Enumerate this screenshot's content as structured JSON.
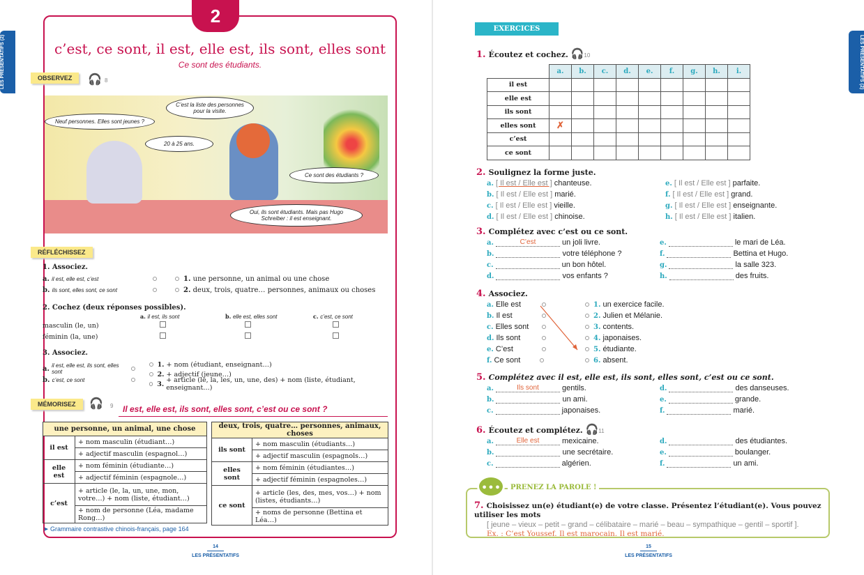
{
  "left": {
    "chapter_number": "2",
    "side_tab": "LES PRÉSENTATIFS (2)",
    "title": "c’est, ce sont, il est, elle est, ils sont, elles sont",
    "subtitle": "Ce sont des étudiants.",
    "observez": {
      "label": "OBSERVEZ",
      "track": "8"
    },
    "bubbles": [
      "Neuf personnes. Elles sont jeunes ?",
      "C’est la liste des personnes pour la visite.",
      "20 à 25 ans.",
      "Ce sont des étudiants ?",
      "Oui, ils sont étudiants. Mais pas Hugo Schreiber : il est enseignant."
    ],
    "reflechissez": {
      "label": "RÉFLÉCHISSEZ",
      "q1": {
        "title": "1. Associez.",
        "left": [
          {
            "l": "a.",
            "t": "il est, elle est, c’est"
          },
          {
            "l": "b.",
            "t": "ils sont, elles sont, ce sont"
          }
        ],
        "right": [
          {
            "l": "1.",
            "t": "une personne, un animal ou une chose"
          },
          {
            "l": "2.",
            "t": "deux, trois, quatre… personnes, animaux ou choses"
          }
        ]
      },
      "q2": {
        "title": "2. Cochez (deux réponses possibles).",
        "cols": [
          {
            "l": "a.",
            "t": "il est, ils sont"
          },
          {
            "l": "b.",
            "t": "elle est, elles sont"
          },
          {
            "l": "c.",
            "t": "c’est, ce sont"
          }
        ],
        "rows": [
          "masculin (le, un)",
          "féminin (la, une)"
        ]
      },
      "q3": {
        "title": "3. Associez.",
        "left": [
          {
            "l": "a.",
            "t": "il est, elle est, ils sont, elles sont"
          },
          {
            "l": "b.",
            "t": "c’est, ce sont"
          }
        ],
        "right": [
          {
            "l": "1.",
            "t": "+ nom (étudiant, enseignant…)"
          },
          {
            "l": "2.",
            "t": "+ adjectif (jeune…)"
          },
          {
            "l": "3.",
            "t": "+ article (le, la, les, un, une, des) + nom (liste, étudiant, enseignant…)"
          }
        ]
      }
    },
    "memorisez": {
      "label": "MÉMORISEZ",
      "track": "9",
      "heading": "Il est, elle est, ils sont, elles sont, c’est ou ce sont ?"
    },
    "table_singular": {
      "header": "une personne, un animal, une chose",
      "groups": [
        {
          "k": "il est",
          "rows": [
            "+ nom masculin (étudiant…)",
            "+ adjectif masculin (espagnol…)"
          ]
        },
        {
          "k": "elle est",
          "rows": [
            "+ nom féminin (étudiante…)",
            "+ adjectif féminin (espagnole…)"
          ]
        },
        {
          "k": "c’est",
          "rows": [
            "+ article (le, la, un, une, mon, votre…) + nom (liste, étudiant…)",
            "+ nom de personne (Léa, madame Rong…)"
          ]
        }
      ]
    },
    "table_plural": {
      "header": "deux, trois, quatre… personnes, animaux, choses",
      "groups": [
        {
          "k": "ils sont",
          "rows": [
            "+ nom masculin (étudiants…)",
            "+ adjectif masculin (espagnols…)"
          ]
        },
        {
          "k": "elles sont",
          "rows": [
            "+ nom féminin (étudiantes…)",
            "+ adjectif féminin (espagnoles…)"
          ]
        },
        {
          "k": "ce sont",
          "rows": [
            "+ article (les, des, mes, vos…) + nom (listes, étudiants…)",
            "+ noms de personne (Bettina et Léa…)"
          ]
        }
      ]
    },
    "grammar_link": "➤ Grammaire contrastive chinois-français, page 164",
    "page_number": "14",
    "footer": "LES PRÉSENTATIFS"
  },
  "right": {
    "side_tab": "LES PRÉSENTATIFS (2)",
    "badge": "EXERCICES",
    "ex1": {
      "n": "1.",
      "title": "Écoutez et cochez.",
      "track": "10",
      "cols": [
        "a.",
        "b.",
        "c.",
        "d.",
        "e.",
        "f.",
        "g.",
        "h.",
        "i."
      ],
      "rows": [
        "il est",
        "elle est",
        "ils sont",
        "elles sont",
        "c’est",
        "ce sont"
      ],
      "mark": "✗"
    },
    "ex2": {
      "n": "2.",
      "title": "Soulignez la forme juste.",
      "choice": "[ Il est / Elle est ]",
      "items": [
        {
          "l": "a.",
          "t": "chanteuse."
        },
        {
          "l": "b.",
          "t": "marié."
        },
        {
          "l": "c.",
          "t": "vieille."
        },
        {
          "l": "d.",
          "t": "chinoise."
        },
        {
          "l": "e.",
          "t": "parfaite."
        },
        {
          "l": "f.",
          "t": "grand."
        },
        {
          "l": "g.",
          "t": "enseignante."
        },
        {
          "l": "h.",
          "t": "italien."
        }
      ]
    },
    "ex3": {
      "n": "3.",
      "title": "Complétez avec c’est ou ce sont.",
      "items": [
        {
          "l": "a.",
          "a": "C’est",
          "t": "un joli livre."
        },
        {
          "l": "b.",
          "t": "votre téléphone ?"
        },
        {
          "l": "c.",
          "t": "un bon hôtel."
        },
        {
          "l": "d.",
          "t": "vos enfants ?"
        },
        {
          "l": "e.",
          "t": "le mari de Léa."
        },
        {
          "l": "f.",
          "t": "Bettina et Hugo."
        },
        {
          "l": "g.",
          "t": "la salle 323."
        },
        {
          "l": "h.",
          "t": "des fruits."
        }
      ]
    },
    "ex4": {
      "n": "4.",
      "title": "Associez.",
      "left": [
        {
          "l": "a.",
          "t": "Elle est"
        },
        {
          "l": "b.",
          "t": "Il est"
        },
        {
          "l": "c.",
          "t": "Elles sont"
        },
        {
          "l": "d.",
          "t": "Ils sont"
        },
        {
          "l": "e.",
          "t": "C’est"
        },
        {
          "l": "f.",
          "t": "Ce sont"
        }
      ],
      "right": [
        {
          "l": "1.",
          "t": "un exercice facile."
        },
        {
          "l": "2.",
          "t": "Julien et Mélanie."
        },
        {
          "l": "3.",
          "t": "contents."
        },
        {
          "l": "4.",
          "t": "japonaises."
        },
        {
          "l": "5.",
          "t": "étudiante."
        },
        {
          "l": "6.",
          "t": "absent."
        }
      ]
    },
    "ex5": {
      "n": "5.",
      "title": "Complétez avec il est, elle est, ils sont, elles sont, c’est ou ce sont.",
      "items": [
        {
          "l": "a.",
          "a": "Ils sont",
          "t": "gentils."
        },
        {
          "l": "b.",
          "t": "un ami."
        },
        {
          "l": "c.",
          "t": "japonaises."
        },
        {
          "l": "d.",
          "t": "des danseuses."
        },
        {
          "l": "e.",
          "t": "grande."
        },
        {
          "l": "f.",
          "t": "marié."
        }
      ]
    },
    "ex6": {
      "n": "6.",
      "title": "Écoutez et complétez.",
      "track": "11",
      "items": [
        {
          "l": "a.",
          "a": "Elle est",
          "t": "mexicaine."
        },
        {
          "l": "b.",
          "t": "une secrétaire."
        },
        {
          "l": "c.",
          "t": "algérien."
        },
        {
          "l": "d.",
          "t": "des étudiantes."
        },
        {
          "l": "e.",
          "t": "boulanger."
        },
        {
          "l": "f.",
          "t": "un ami."
        }
      ]
    },
    "parole": {
      "label": "PRENEZ LA PAROLE !",
      "n": "7.",
      "text": "Choisissez un(e) étudiant(e) de votre classe. Présentez l’étudiant(e). Vous pouvez utiliser les mots",
      "words": "[ jeune – vieux – petit – grand – célibataire – marié – beau – sympathique – gentil – sportif ].",
      "example": "Ex. : C’est Youssef. Il est marocain. Il est marié."
    },
    "page_number": "15",
    "footer": "LES PRÉSENTATIFS"
  },
  "colors": {
    "crimson": "#c8124f",
    "teal": "#2ba9bd",
    "blue": "#1b5fa8",
    "highlight": "#fbe98a",
    "green": "#9bbb3c",
    "answer": "#e0643a"
  }
}
